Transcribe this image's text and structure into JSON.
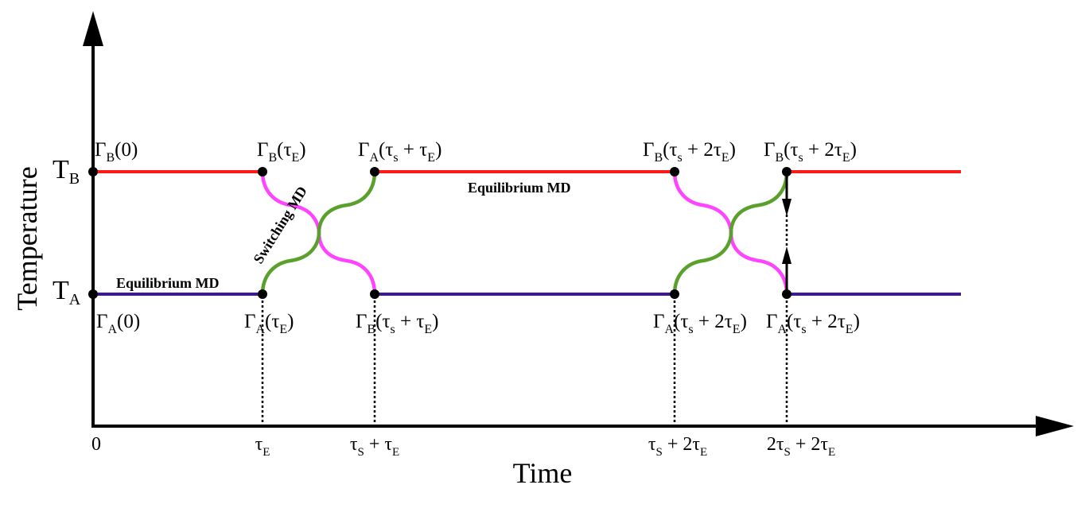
{
  "axes": {
    "y_title": "Temperature",
    "x_title": "Time",
    "y_levels": [
      {
        "main": "T",
        "sub": "B"
      },
      {
        "main": "T",
        "sub": "A"
      }
    ],
    "x_ticks": [
      {
        "parts": [
          [
            "0",
            ""
          ]
        ]
      },
      {
        "parts": [
          [
            "τ",
            "E"
          ]
        ]
      },
      {
        "parts": [
          [
            "τ",
            "S"
          ],
          [
            " + τ",
            "E"
          ]
        ]
      },
      {
        "parts": [
          [
            "τ",
            "S"
          ],
          [
            " + 2τ",
            "E"
          ]
        ]
      },
      {
        "parts": [
          [
            "2τ",
            "S"
          ],
          [
            " + 2τ",
            "E"
          ]
        ]
      }
    ]
  },
  "point_labels": [
    {
      "parts": [
        [
          "Γ",
          "B"
        ],
        [
          "(0)",
          ""
        ]
      ]
    },
    {
      "parts": [
        [
          "Γ",
          "B"
        ],
        [
          "(τ",
          "E"
        ],
        [
          ")",
          ""
        ]
      ]
    },
    {
      "parts": [
        [
          "Γ",
          "A"
        ],
        [
          "(τ",
          "s"
        ],
        [
          " + τ",
          "E"
        ],
        [
          ")",
          ""
        ]
      ]
    },
    {
      "parts": [
        [
          "Γ",
          "B"
        ],
        [
          "(τ",
          "s"
        ],
        [
          " + 2τ",
          "E"
        ],
        [
          ")",
          ""
        ]
      ]
    },
    {
      "parts": [
        [
          "Γ",
          "B"
        ],
        [
          "(τ",
          "s"
        ],
        [
          " + 2τ",
          "E"
        ],
        [
          ")",
          ""
        ]
      ]
    },
    {
      "parts": [
        [
          "Γ",
          "A"
        ],
        [
          "(0)",
          ""
        ]
      ]
    },
    {
      "parts": [
        [
          "Γ",
          "A"
        ],
        [
          "(τ",
          "E"
        ],
        [
          ")",
          ""
        ]
      ]
    },
    {
      "parts": [
        [
          "Γ",
          "B"
        ],
        [
          "(τ",
          "s"
        ],
        [
          " + τ",
          "E"
        ],
        [
          ")",
          ""
        ]
      ]
    },
    {
      "parts": [
        [
          "Γ",
          "A"
        ],
        [
          "(τ",
          "s"
        ],
        [
          " + 2τ",
          "E"
        ],
        [
          ")",
          ""
        ]
      ]
    },
    {
      "parts": [
        [
          "Γ",
          "A"
        ],
        [
          "(τ",
          "s"
        ],
        [
          " + 2τ",
          "E"
        ],
        [
          ")",
          ""
        ]
      ]
    }
  ],
  "annotations": {
    "equilibrium_top": "Equilibrium MD",
    "equilibrium_bottom": "Equilibrium MD",
    "switching": "Switching MD"
  },
  "colors": {
    "hot_line": "#ff1a1a",
    "cold_line": "#3d1a8c",
    "switch_up": "#5aa02c",
    "switch_down": "#ff44ff",
    "axis": "#000000"
  }
}
